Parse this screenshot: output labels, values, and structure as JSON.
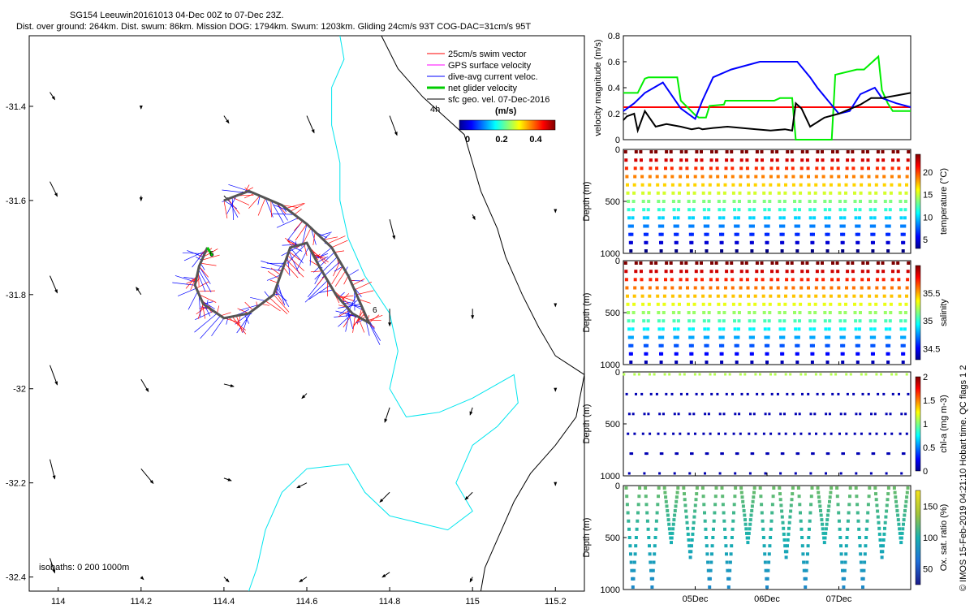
{
  "chart_data": [
    {
      "type": "scatter",
      "title_line1": "SG154 Leeuwin20161013 04-Dec 00Z to 07-Dec 23Z.",
      "title_line2": "Dist. over ground: 264km. Dist. swum: 86km. Mission DOG: 1794km. Swum: 1203km. Gliding 24cm/s 93T COG-DAC=31cm/s 95T",
      "xlim": [
        113.93,
        115.27
      ],
      "ylim": [
        -32.43,
        -31.25
      ],
      "x_ticks": [
        114,
        114.2,
        114.4,
        114.6,
        114.8,
        115,
        115.2
      ],
      "x_tick_labels": [
        "114",
        "114.2",
        "114.4",
        "114.6",
        "114.8",
        "115",
        "115.2"
      ],
      "y_ticks": [
        -31.4,
        -31.6,
        -31.8,
        -32,
        -32.2,
        -32.4
      ],
      "y_tick_labels": [
        "-31.4",
        "-31.6",
        "-31.8",
        "-32",
        "-32.2",
        "-32.4"
      ],
      "legend": [
        {
          "label": "25cm/s swim vector",
          "color": "#ff0000"
        },
        {
          "label": "GPS surface velocity",
          "color": "#ff00ff"
        },
        {
          "label": "dive-avg current veloc.",
          "color": "#0000ff"
        },
        {
          "label": "net glider velocity",
          "color": "#00cc00"
        },
        {
          "label": "sfc geo. vel. 07-Dec-2016",
          "color": "#000000"
        }
      ],
      "scale_label": "4h",
      "colorbar": {
        "title": "(m/s)",
        "tick_labels": [
          "0",
          "0.2",
          "0.4"
        ],
        "range": [
          0,
          0.5
        ]
      },
      "isobaths_label": "isobaths: 0   200  1000m",
      "track_labels": [
        "6",
        "6"
      ],
      "glider_track": [
        [
          114.4,
          -31.6
        ],
        [
          114.46,
          -31.58
        ],
        [
          114.54,
          -31.61
        ],
        [
          114.6,
          -31.65
        ],
        [
          114.66,
          -31.7
        ],
        [
          114.7,
          -31.76
        ],
        [
          114.73,
          -31.82
        ],
        [
          114.75,
          -31.86
        ],
        [
          114.71,
          -31.84
        ],
        [
          114.67,
          -31.8
        ],
        [
          114.63,
          -31.74
        ],
        [
          114.6,
          -31.69
        ],
        [
          114.56,
          -31.7
        ],
        [
          114.54,
          -31.75
        ],
        [
          114.52,
          -31.8
        ],
        [
          114.46,
          -31.84
        ],
        [
          114.4,
          -31.85
        ],
        [
          114.35,
          -31.82
        ],
        [
          114.33,
          -31.78
        ],
        [
          114.34,
          -31.74
        ],
        [
          114.36,
          -31.7
        ]
      ],
      "geo_vectors": [
        {
          "lon": 113.98,
          "lat": -31.37,
          "u": 0.02,
          "v": -0.03
        },
        {
          "lon": 114.2,
          "lat": -31.4,
          "u": 0.0,
          "v": -0.01
        },
        {
          "lon": 114.4,
          "lat": -31.42,
          "u": 0.02,
          "v": -0.03
        },
        {
          "lon": 114.6,
          "lat": -31.42,
          "u": 0.03,
          "v": -0.07
        },
        {
          "lon": 114.8,
          "lat": -31.42,
          "u": 0.03,
          "v": -0.08
        },
        {
          "lon": 113.98,
          "lat": -31.56,
          "u": 0.03,
          "v": -0.06
        },
        {
          "lon": 114.2,
          "lat": -31.59,
          "u": 0.0,
          "v": -0.02
        },
        {
          "lon": 114.4,
          "lat": -31.59,
          "u": 0.02,
          "v": -0.02
        },
        {
          "lon": 114.8,
          "lat": -31.64,
          "u": 0.02,
          "v": -0.08
        },
        {
          "lon": 115.0,
          "lat": -31.63,
          "u": 0.01,
          "v": -0.02
        },
        {
          "lon": 115.2,
          "lat": -31.62,
          "u": 0.0,
          "v": -0.01
        },
        {
          "lon": 113.98,
          "lat": -31.76,
          "u": 0.03,
          "v": -0.07
        },
        {
          "lon": 114.2,
          "lat": -31.8,
          "u": -0.02,
          "v": 0.03
        },
        {
          "lon": 114.8,
          "lat": -31.83,
          "u": 0.0,
          "v": -0.07
        },
        {
          "lon": 115.0,
          "lat": -31.83,
          "u": 0.0,
          "v": -0.04
        },
        {
          "lon": 115.2,
          "lat": -31.82,
          "u": 0.0,
          "v": -0.01
        },
        {
          "lon": 113.98,
          "lat": -31.95,
          "u": 0.03,
          "v": -0.08
        },
        {
          "lon": 114.2,
          "lat": -31.98,
          "u": 0.03,
          "v": -0.05
        },
        {
          "lon": 114.4,
          "lat": -31.99,
          "u": 0.04,
          "v": -0.01
        },
        {
          "lon": 114.6,
          "lat": -32.01,
          "u": -0.02,
          "v": -0.02
        },
        {
          "lon": 114.8,
          "lat": -32.04,
          "u": -0.02,
          "v": -0.06
        },
        {
          "lon": 115.0,
          "lat": -32.04,
          "u": -0.01,
          "v": -0.03
        },
        {
          "lon": 115.2,
          "lat": -32.0,
          "u": 0.0,
          "v": -0.01
        },
        {
          "lon": 113.98,
          "lat": -32.15,
          "u": 0.02,
          "v": -0.08
        },
        {
          "lon": 114.2,
          "lat": -32.17,
          "u": 0.05,
          "v": -0.06
        },
        {
          "lon": 114.4,
          "lat": -32.19,
          "u": 0.03,
          "v": -0.01
        },
        {
          "lon": 114.6,
          "lat": -32.2,
          "u": -0.04,
          "v": -0.02
        },
        {
          "lon": 114.8,
          "lat": -32.22,
          "u": -0.04,
          "v": -0.04
        },
        {
          "lon": 115.0,
          "lat": -32.22,
          "u": -0.03,
          "v": -0.03
        },
        {
          "lon": 115.2,
          "lat": -32.2,
          "u": 0.0,
          "v": -0.01
        },
        {
          "lon": 113.98,
          "lat": -32.36,
          "u": 0.02,
          "v": -0.06
        },
        {
          "lon": 114.2,
          "lat": -32.4,
          "u": 0.01,
          "v": -0.01
        },
        {
          "lon": 114.4,
          "lat": -32.4,
          "u": 0.02,
          "v": -0.02
        },
        {
          "lon": 114.6,
          "lat": -32.4,
          "u": -0.03,
          "v": -0.02
        },
        {
          "lon": 114.8,
          "lat": -32.39,
          "u": -0.03,
          "v": -0.02
        },
        {
          "lon": 115.0,
          "lat": -32.4,
          "u": -0.01,
          "v": -0.02
        }
      ],
      "coast_0m": [
        [
          114.68,
          -31.25
        ],
        [
          114.69,
          -31.3
        ],
        [
          114.66,
          -31.36
        ],
        [
          114.66,
          -31.44
        ],
        [
          114.68,
          -31.52
        ],
        [
          114.68,
          -31.6
        ],
        [
          114.7,
          -31.68
        ],
        [
          114.74,
          -31.76
        ],
        [
          114.8,
          -31.84
        ],
        [
          114.82,
          -31.92
        ],
        [
          114.8,
          -32.0
        ],
        [
          114.84,
          -32.06
        ],
        [
          114.92,
          -32.05
        ],
        [
          115.0,
          -32.02
        ],
        [
          115.1,
          -31.97
        ],
        [
          115.11,
          -32.03
        ],
        [
          115.06,
          -32.08
        ],
        [
          115.0,
          -32.12
        ],
        [
          114.96,
          -32.2
        ],
        [
          115.0,
          -32.26
        ],
        [
          114.94,
          -32.3
        ],
        [
          114.8,
          -32.27
        ],
        [
          114.74,
          -32.22
        ],
        [
          114.7,
          -32.16
        ],
        [
          114.6,
          -32.17
        ],
        [
          114.54,
          -32.22
        ],
        [
          114.5,
          -32.3
        ],
        [
          114.48,
          -32.38
        ],
        [
          114.46,
          -32.43
        ]
      ],
      "isobath_200m": [
        [
          114.78,
          -31.25
        ],
        [
          114.82,
          -31.32
        ],
        [
          114.88,
          -31.38
        ],
        [
          114.93,
          -31.42
        ],
        [
          114.98,
          -31.46
        ],
        [
          115.0,
          -31.52
        ],
        [
          115.02,
          -31.58
        ],
        [
          115.06,
          -31.66
        ],
        [
          115.08,
          -31.72
        ],
        [
          115.12,
          -31.8
        ],
        [
          115.16,
          -31.87
        ],
        [
          115.2,
          -31.93
        ],
        [
          115.27,
          -31.97
        ],
        [
          115.25,
          -32.06
        ],
        [
          115.2,
          -32.12
        ],
        [
          115.14,
          -32.18
        ],
        [
          115.1,
          -32.24
        ],
        [
          115.06,
          -32.32
        ],
        [
          115.03,
          -32.38
        ],
        [
          115.02,
          -32.43
        ]
      ]
    },
    {
      "type": "line",
      "ylabel": "velocity magnitude (m/s)",
      "xlim": [
        4.0,
        8.0
      ],
      "ylim": [
        0,
        0.8
      ],
      "y_tick_labels": [
        "0",
        "0.2",
        "0.4",
        "0.6",
        "0.8"
      ],
      "series": [
        {
          "name": "red",
          "color": "#ff0000",
          "x": [
            4.0,
            8.0
          ],
          "y": [
            0.25,
            0.25
          ]
        },
        {
          "name": "green",
          "color": "#00ee00",
          "x": [
            4.0,
            4.2,
            4.3,
            4.35,
            4.75,
            4.8,
            5.0,
            5.05,
            5.15,
            5.2,
            5.4,
            5.42,
            6.0,
            6.1,
            6.18,
            6.35,
            6.4,
            6.9,
            6.95,
            7.25,
            7.35,
            7.55,
            7.6,
            7.68,
            7.75,
            7.85,
            8.0
          ],
          "y": [
            0.36,
            0.36,
            0.47,
            0.48,
            0.48,
            0.3,
            0.19,
            0.17,
            0.17,
            0.26,
            0.27,
            0.3,
            0.3,
            0.3,
            0.32,
            0.32,
            0.0,
            0.0,
            0.5,
            0.54,
            0.54,
            0.64,
            0.38,
            0.28,
            0.22,
            0.22,
            0.22
          ]
        },
        {
          "name": "blue",
          "color": "#0000ff",
          "x": [
            4.0,
            4.15,
            4.3,
            4.55,
            4.8,
            5.0,
            5.1,
            5.25,
            5.5,
            5.9,
            6.2,
            6.42,
            6.6,
            6.7,
            6.85,
            7.0,
            7.15,
            7.3,
            7.5,
            7.6,
            7.8,
            8.0
          ],
          "y": [
            0.22,
            0.28,
            0.36,
            0.44,
            0.24,
            0.16,
            0.3,
            0.48,
            0.54,
            0.6,
            0.6,
            0.6,
            0.48,
            0.4,
            0.3,
            0.2,
            0.22,
            0.35,
            0.4,
            0.32,
            0.28,
            0.25
          ]
        },
        {
          "name": "black",
          "color": "#000000",
          "x": [
            4.0,
            4.05,
            4.15,
            4.2,
            4.3,
            4.45,
            4.6,
            4.8,
            4.95,
            5.05,
            5.1,
            5.25,
            5.45,
            5.65,
            5.85,
            6.05,
            6.25,
            6.35,
            6.4,
            6.48,
            6.6,
            6.8,
            7.0,
            7.3,
            7.45,
            7.6,
            7.8,
            8.0
          ],
          "y": [
            0.15,
            0.18,
            0.2,
            0.07,
            0.22,
            0.1,
            0.12,
            0.1,
            0.08,
            0.09,
            0.08,
            0.09,
            0.1,
            0.09,
            0.08,
            0.07,
            0.08,
            0.07,
            0.28,
            0.24,
            0.1,
            0.17,
            0.2,
            0.27,
            0.32,
            0.32,
            0.34,
            0.36
          ]
        }
      ]
    },
    {
      "type": "scatter",
      "ylabel": "Depth (m)",
      "variable": "temperature (°C)",
      "ylim": [
        1000,
        0
      ],
      "y_tick_labels": [
        "0",
        "500",
        "1000"
      ],
      "colorbar_tick_labels": [
        "5",
        "10",
        "15",
        "20"
      ],
      "color_range": [
        3,
        24
      ],
      "profile_shape": "full_depth_v",
      "dive_count": 19
    },
    {
      "type": "scatter",
      "ylabel": "Depth (m)",
      "variable": "salinity",
      "ylim": [
        1000,
        0
      ],
      "y_tick_labels": [
        "0",
        "500",
        "1000"
      ],
      "colorbar_tick_labels": [
        "34.5",
        "35",
        "35.5"
      ],
      "color_range": [
        34.3,
        36.0
      ],
      "profile_shape": "full_depth_v",
      "dive_count": 19
    },
    {
      "type": "scatter",
      "ylabel": "Depth (m)",
      "variable": "chl-a (mg m-3)",
      "ylim": [
        1000,
        0
      ],
      "y_tick_labels": [
        "0",
        "500",
        "1000"
      ],
      "colorbar_tick_labels": [
        "0",
        "0.5",
        "1",
        "1.5",
        "2"
      ],
      "color_range": [
        0,
        2
      ],
      "profile_shape": "sparse_points",
      "dive_count": 19
    },
    {
      "type": "scatter",
      "ylabel": "Depth (m)",
      "variable": "Ox. sat. ratio (%)",
      "ylim": [
        1000,
        0
      ],
      "y_tick_labels": [
        "0",
        "500",
        "1000"
      ],
      "colorbar_tick_labels": [
        "50",
        "100",
        "150"
      ],
      "color_range": [
        25,
        175
      ],
      "profile_shape": "partial_v",
      "dive_count": 15,
      "x_tick_labels": [
        "05Dec",
        "06Dec",
        "07Dec"
      ]
    }
  ],
  "side_note": "© IMOS 15-Feb-2019 04:21:10 Hobart time. QC flags 1  2"
}
